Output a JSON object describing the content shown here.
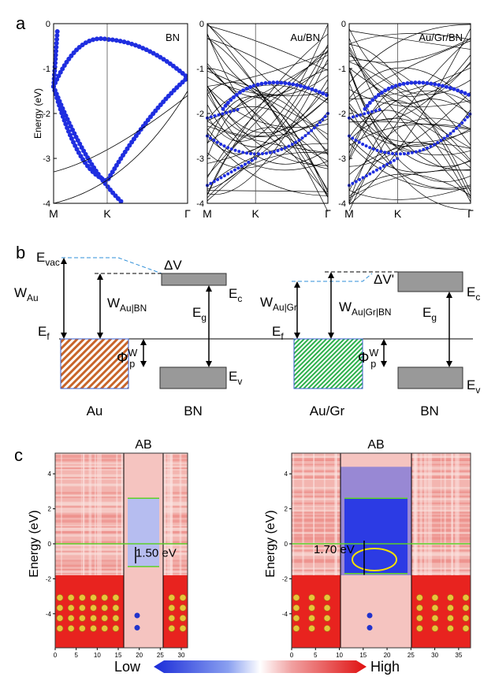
{
  "panel_a": {
    "label": "a",
    "y_label": "Energy (eV)",
    "y_ticks": [
      0,
      -1,
      -2,
      -3,
      -4
    ],
    "x_ticks": [
      "M",
      "K",
      "Γ"
    ],
    "plots": [
      {
        "title": "BN"
      },
      {
        "title": "Au/BN"
      },
      {
        "title": "Au/Gr/BN"
      }
    ]
  },
  "panel_b": {
    "label": "b",
    "left": {
      "e_vac": {
        "base": "E",
        "sub": "vac"
      },
      "w_metal": {
        "base": "W",
        "sub": "Au"
      },
      "w_interface": {
        "base": "W",
        "sub": "Au|BN"
      },
      "e_f": {
        "base": "E",
        "sub": "f"
      },
      "delta_v": "ΔV",
      "e_c": {
        "base": "E",
        "sub": "c"
      },
      "e_g": {
        "base": "E",
        "sub": "g"
      },
      "e_v": {
        "base": "E",
        "sub": "v"
      },
      "phi": {
        "base": "Φ",
        "sub": "p",
        "sup": "W"
      },
      "metal": "Au",
      "semiconductor": "BN"
    },
    "right": {
      "w_metal": {
        "base": "W",
        "sub": "Au|Gr"
      },
      "w_interface": {
        "base": "W",
        "sub": "Au|Gr|BN"
      },
      "e_f": {
        "base": "E",
        "sub": "f"
      },
      "delta_v": "ΔV'",
      "e_c": {
        "base": "E",
        "sub": "c"
      },
      "e_g": {
        "base": "E",
        "sub": "g"
      },
      "e_v": {
        "base": "E",
        "sub": "v"
      },
      "phi": {
        "base": "Φ",
        "sub": "p",
        "sup": "W"
      },
      "metal": "Au/Gr",
      "semiconductor": "BN"
    }
  },
  "panel_c": {
    "label": "c",
    "y_label": "Energy (eV)",
    "y_ticks": [
      4,
      2,
      0,
      -2,
      -4
    ],
    "plots": [
      {
        "title": "AB",
        "x_ticks": [
          0,
          5,
          10,
          15,
          20,
          25,
          30
        ],
        "gap_label": "1.50 eV"
      },
      {
        "title": "AB",
        "x_ticks": [
          0,
          5,
          10,
          15,
          20,
          25,
          30,
          35
        ],
        "gap_label": "1.70 eV"
      }
    ],
    "colorbar": {
      "low": "Low",
      "high": "High"
    }
  }
}
